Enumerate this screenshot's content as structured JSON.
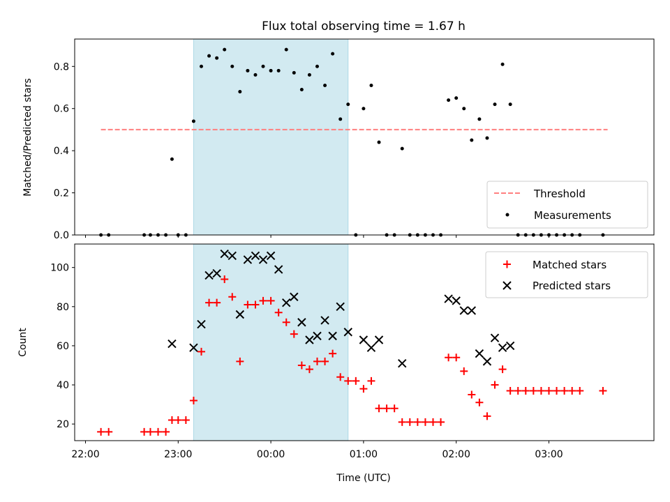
{
  "chart_data": {
    "type": "scatter",
    "title": "Flux total observing time = 1.67 h",
    "xlabel": "Time (UTC)",
    "x_start": "2023-01-01T22:00",
    "x_tick_labels": [
      "22:00",
      "23:00",
      "00:00",
      "01:00",
      "02:00",
      "03:00"
    ],
    "xlim": [
      "21:53",
      "04:08"
    ],
    "shaded_span": {
      "from": "23:10",
      "to": "00:50",
      "color": "#add8e6"
    },
    "panels": [
      {
        "ylabel": "Matched/Predicted stars",
        "ylim": [
          0,
          0.93
        ],
        "y_ticks": [
          "0.0",
          "0.2",
          "0.4",
          "0.6",
          "0.8"
        ],
        "legend_position": "lower-right",
        "threshold": {
          "name": "Threshold",
          "value": 0.5,
          "from": "22:10",
          "to": "03:38",
          "color": "#ff7f7f"
        },
        "series": [
          {
            "name": "Measurements",
            "color": "#000000",
            "marker": "dot",
            "points": [
              [
                "22:10",
                0
              ],
              [
                "22:15",
                0
              ],
              [
                "22:38",
                0
              ],
              [
                "22:42",
                0
              ],
              [
                "22:47",
                0
              ],
              [
                "22:52",
                0
              ],
              [
                "22:56",
                0.36
              ],
              [
                "23:00",
                0
              ],
              [
                "23:05",
                0
              ],
              [
                "23:10",
                0.54
              ],
              [
                "23:15",
                0.8
              ],
              [
                "23:20",
                0.85
              ],
              [
                "23:25",
                0.84
              ],
              [
                "23:30",
                0.88
              ],
              [
                "23:35",
                0.8
              ],
              [
                "23:40",
                0.68
              ],
              [
                "23:45",
                0.78
              ],
              [
                "23:50",
                0.76
              ],
              [
                "23:55",
                0.8
              ],
              [
                "00:00",
                0.78
              ],
              [
                "00:05",
                0.78
              ],
              [
                "00:10",
                0.88
              ],
              [
                "00:15",
                0.77
              ],
              [
                "00:20",
                0.69
              ],
              [
                "00:25",
                0.76
              ],
              [
                "00:30",
                0.8
              ],
              [
                "00:35",
                0.71
              ],
              [
                "00:40",
                0.86
              ],
              [
                "00:45",
                0.55
              ],
              [
                "00:50",
                0.62
              ],
              [
                "00:55",
                0
              ],
              [
                "01:00",
                0.6
              ],
              [
                "01:05",
                0.71
              ],
              [
                "01:10",
                0.44
              ],
              [
                "01:15",
                0
              ],
              [
                "01:20",
                0
              ],
              [
                "01:25",
                0.41
              ],
              [
                "01:30",
                0
              ],
              [
                "01:35",
                0
              ],
              [
                "01:40",
                0
              ],
              [
                "01:45",
                0
              ],
              [
                "01:50",
                0
              ],
              [
                "01:55",
                0.64
              ],
              [
                "02:00",
                0.65
              ],
              [
                "02:05",
                0.6
              ],
              [
                "02:10",
                0.45
              ],
              [
                "02:15",
                0.55
              ],
              [
                "02:20",
                0.46
              ],
              [
                "02:25",
                0.62
              ],
              [
                "02:30",
                0.81
              ],
              [
                "02:35",
                0.62
              ],
              [
                "02:40",
                0
              ],
              [
                "02:45",
                0
              ],
              [
                "02:50",
                0
              ],
              [
                "02:55",
                0
              ],
              [
                "03:00",
                0
              ],
              [
                "03:05",
                0
              ],
              [
                "03:10",
                0
              ],
              [
                "03:15",
                0
              ],
              [
                "03:20",
                0
              ],
              [
                "03:35",
                0
              ]
            ]
          }
        ]
      },
      {
        "ylabel": "Count",
        "ylim": [
          11.5,
          112
        ],
        "y_ticks": [
          "20",
          "40",
          "60",
          "80",
          "100"
        ],
        "legend_position": "upper-right",
        "series": [
          {
            "name": "Matched stars",
            "color": "#ff0000",
            "marker": "plus",
            "points": [
              [
                "22:10",
                16
              ],
              [
                "22:15",
                16
              ],
              [
                "22:38",
                16
              ],
              [
                "22:42",
                16
              ],
              [
                "22:47",
                16
              ],
              [
                "22:52",
                16
              ],
              [
                "22:56",
                22
              ],
              [
                "23:00",
                22
              ],
              [
                "23:05",
                22
              ],
              [
                "23:10",
                32
              ],
              [
                "23:15",
                57
              ],
              [
                "23:20",
                82
              ],
              [
                "23:25",
                82
              ],
              [
                "23:30",
                94
              ],
              [
                "23:35",
                85
              ],
              [
                "23:40",
                52
              ],
              [
                "23:45",
                81
              ],
              [
                "23:50",
                81
              ],
              [
                "23:55",
                83
              ],
              [
                "00:00",
                83
              ],
              [
                "00:05",
                77
              ],
              [
                "00:10",
                72
              ],
              [
                "00:15",
                66
              ],
              [
                "00:20",
                50
              ],
              [
                "00:25",
                48
              ],
              [
                "00:30",
                52
              ],
              [
                "00:35",
                52
              ],
              [
                "00:40",
                56
              ],
              [
                "00:45",
                44
              ],
              [
                "00:50",
                42
              ],
              [
                "00:55",
                42
              ],
              [
                "01:00",
                38
              ],
              [
                "01:05",
                42
              ],
              [
                "01:10",
                28
              ],
              [
                "01:15",
                28
              ],
              [
                "01:20",
                28
              ],
              [
                "01:25",
                21
              ],
              [
                "01:30",
                21
              ],
              [
                "01:35",
                21
              ],
              [
                "01:40",
                21
              ],
              [
                "01:45",
                21
              ],
              [
                "01:50",
                21
              ],
              [
                "01:55",
                54
              ],
              [
                "02:00",
                54
              ],
              [
                "02:05",
                47
              ],
              [
                "02:10",
                35
              ],
              [
                "02:15",
                31
              ],
              [
                "02:20",
                24
              ],
              [
                "02:25",
                40
              ],
              [
                "02:30",
                48
              ],
              [
                "02:35",
                37
              ],
              [
                "02:40",
                37
              ],
              [
                "02:45",
                37
              ],
              [
                "02:50",
                37
              ],
              [
                "02:55",
                37
              ],
              [
                "03:00",
                37
              ],
              [
                "03:05",
                37
              ],
              [
                "03:10",
                37
              ],
              [
                "03:15",
                37
              ],
              [
                "03:20",
                37
              ],
              [
                "03:35",
                37
              ]
            ]
          },
          {
            "name": "Predicted stars",
            "color": "#000000",
            "marker": "x",
            "points": [
              [
                "22:56",
                61
              ],
              [
                "23:10",
                59
              ],
              [
                "23:15",
                71
              ],
              [
                "23:20",
                96
              ],
              [
                "23:25",
                97
              ],
              [
                "23:30",
                107
              ],
              [
                "23:35",
                106
              ],
              [
                "23:40",
                76
              ],
              [
                "23:45",
                104
              ],
              [
                "23:50",
                106
              ],
              [
                "23:55",
                104
              ],
              [
                "00:00",
                106
              ],
              [
                "00:05",
                99
              ],
              [
                "00:10",
                82
              ],
              [
                "00:15",
                85
              ],
              [
                "00:20",
                72
              ],
              [
                "00:25",
                63
              ],
              [
                "00:30",
                65
              ],
              [
                "00:35",
                73
              ],
              [
                "00:40",
                65
              ],
              [
                "00:45",
                80
              ],
              [
                "00:50",
                67
              ],
              [
                "01:00",
                63
              ],
              [
                "01:05",
                59
              ],
              [
                "01:10",
                63
              ],
              [
                "01:25",
                51
              ],
              [
                "01:55",
                84
              ],
              [
                "02:00",
                83
              ],
              [
                "02:05",
                78
              ],
              [
                "02:10",
                78
              ],
              [
                "02:15",
                56
              ],
              [
                "02:20",
                52
              ],
              [
                "02:25",
                64
              ],
              [
                "02:30",
                59
              ],
              [
                "02:35",
                60
              ]
            ]
          }
        ]
      }
    ]
  }
}
